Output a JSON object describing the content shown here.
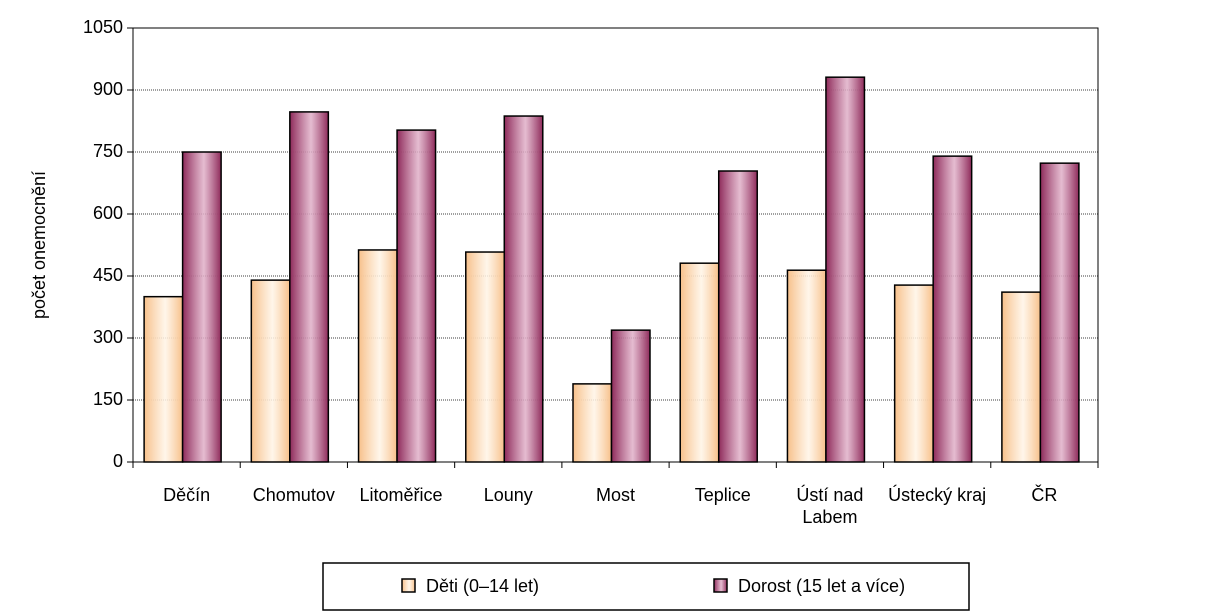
{
  "chart_data": {
    "type": "bar",
    "y_label": "počet onemocnění",
    "categories": [
      "Děčín",
      "Chomutov",
      "Litoměřice",
      "Louny",
      "Most",
      "Teplice",
      "Ústí nad Labem",
      "Ústecký kraj",
      "ČR"
    ],
    "series": [
      {
        "name": "Děti (0–14 let)",
        "color": "#f7c08a",
        "values": [
          400,
          440,
          513,
          508,
          189,
          481,
          464,
          428,
          411
        ]
      },
      {
        "name": "Dorost (15 let a více)",
        "color": "#8e2a5a",
        "values": [
          750,
          847,
          803,
          837,
          319,
          704,
          931,
          740,
          723
        ]
      }
    ],
    "ylim": [
      0,
      1050
    ],
    "yticks": [
      0,
      150,
      300,
      450,
      600,
      750,
      900,
      1050
    ],
    "grid": true,
    "legend": "bottom"
  }
}
